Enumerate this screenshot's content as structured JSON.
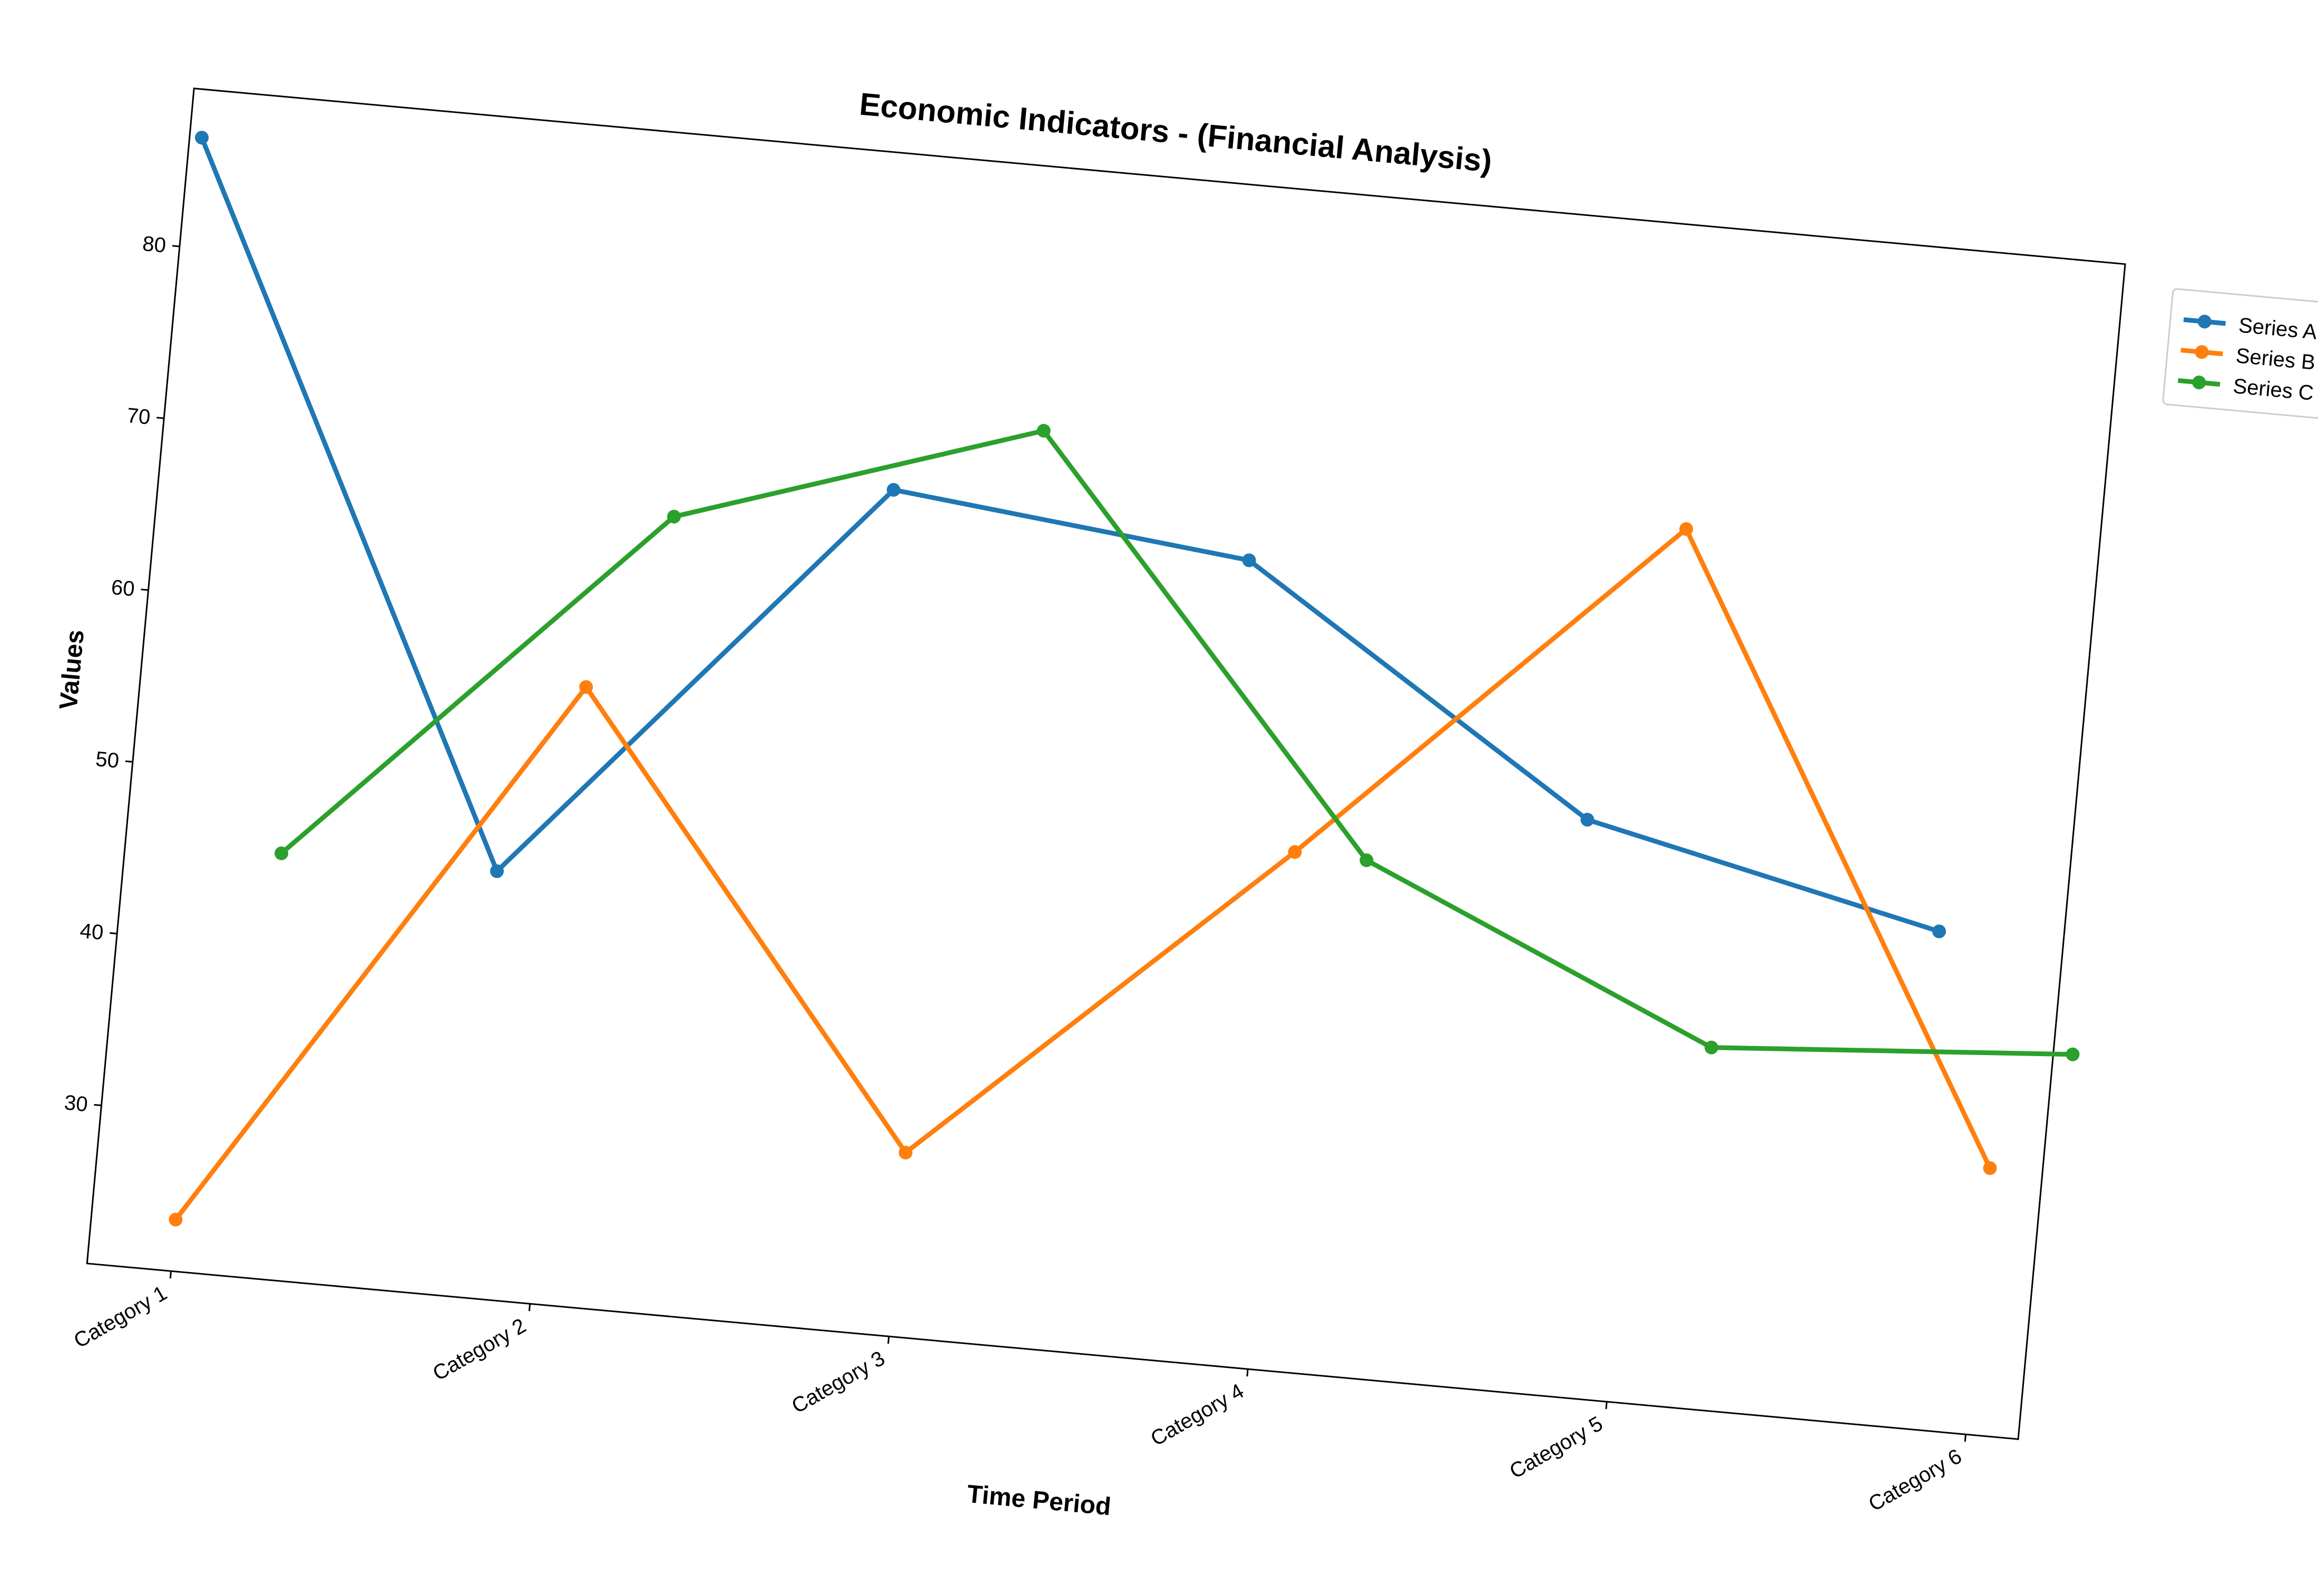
{
  "chart_data": {
    "type": "line",
    "title": "Economic Indicators - (Financial Analysis)",
    "xlabel": "Time Period",
    "ylabel": "Values",
    "categories": [
      "Category 1",
      "Category 2",
      "Category 3",
      "Category 4",
      "Category 5",
      "Category 6"
    ],
    "yticks": [
      30,
      40,
      50,
      60,
      70,
      80
    ],
    "ylim": [
      20.8,
      89.2
    ],
    "grid": false,
    "legend_position": "top-right outside",
    "series": [
      {
        "name": "Series A",
        "color": "#1f77b4",
        "values": [
          86.4,
          45.6,
          69.7,
          67.5,
          54.3,
          49.7
        ]
      },
      {
        "name": "Series B",
        "color": "#ff7f0e",
        "values": [
          23.8,
          56.7,
          31.5,
          50.9,
          71.6,
          36.3
        ]
      },
      {
        "name": "Series C",
        "color": "#2ca02c",
        "values": [
          45.5,
          67.0,
          73.9,
          50.8,
          41.8,
          43.3
        ]
      }
    ]
  }
}
